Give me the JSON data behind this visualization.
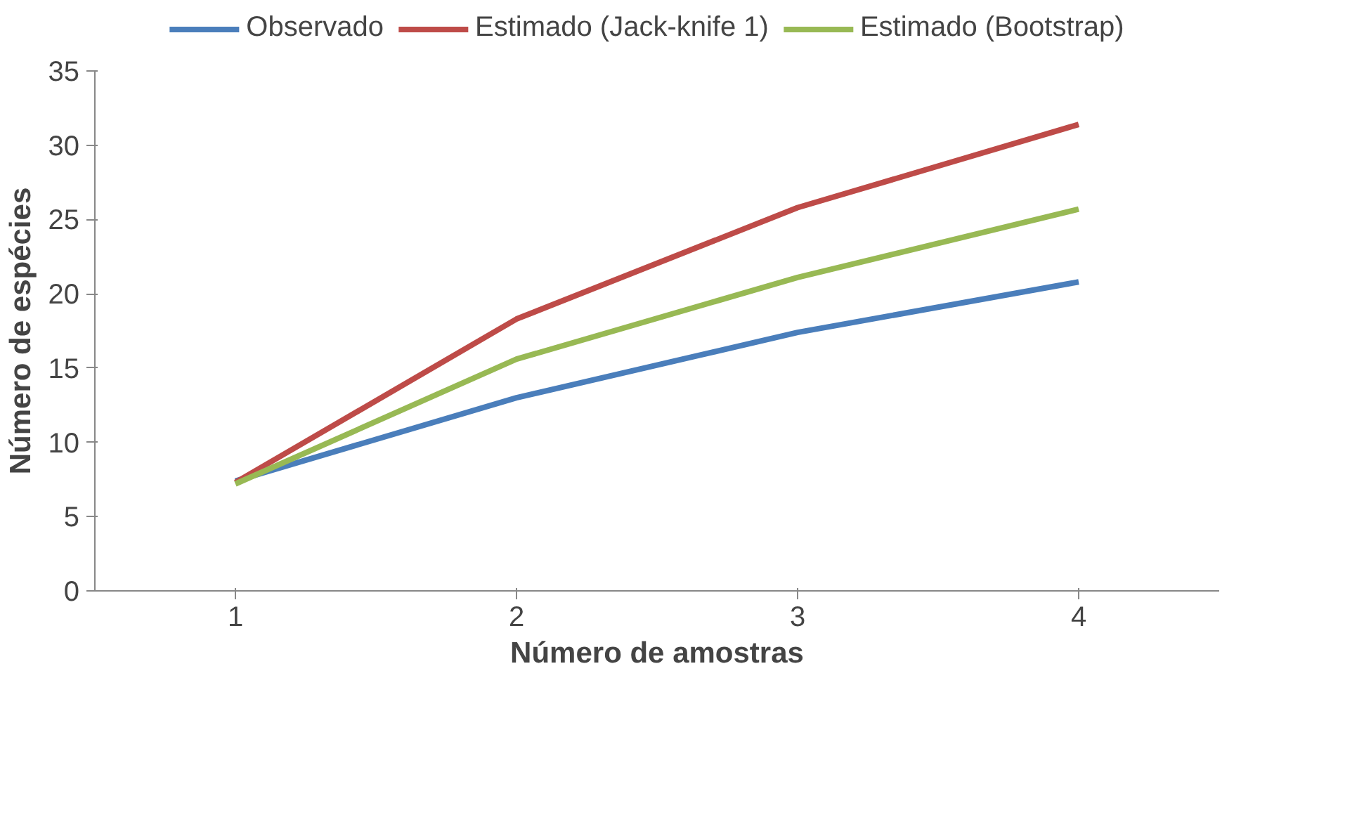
{
  "chart_data": {
    "type": "line",
    "xlabel": "Número de amostras",
    "ylabel": "Número de espécies",
    "categories": [
      "1",
      "2",
      "3",
      "4"
    ],
    "series": [
      {
        "name": "Observado",
        "color": "#4a7ebb",
        "values": [
          7.4,
          13.0,
          17.4,
          20.8
        ]
      },
      {
        "name": "Estimado (Jack-knife 1)",
        "color": "#be4b48",
        "values": [
          7.3,
          18.3,
          25.8,
          31.4
        ]
      },
      {
        "name": "Estimado (Bootstrap)",
        "color": "#98b954",
        "values": [
          7.2,
          15.6,
          21.1,
          25.7
        ]
      }
    ],
    "ylim": [
      0,
      35
    ],
    "yticks": [
      0,
      5,
      10,
      15,
      20,
      25,
      30,
      35
    ],
    "grid": false,
    "legend": "top",
    "marker": "none",
    "line_style": "solid"
  }
}
